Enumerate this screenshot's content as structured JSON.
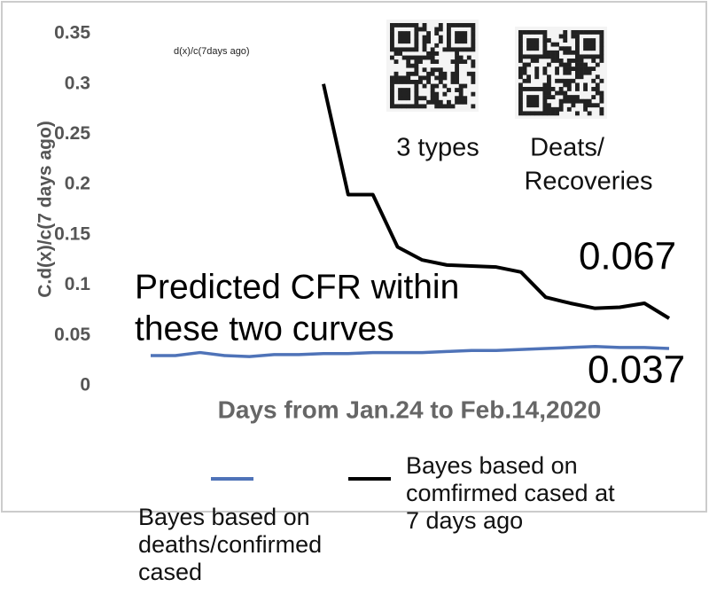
{
  "chart_data": {
    "type": "line",
    "y_label": "C.d(x)/c(7 days ago)",
    "x_label": "Days from Jan.24 to Feb.14,2020",
    "annotations": {
      "formula": "d(x)/c(7days ago)",
      "qr1": "3 types",
      "qr2": [
        "Deats/",
        "Recoveries"
      ],
      "note": [
        "Predicted CFR within",
        "these two curves"
      ],
      "upper": "0.067",
      "lower": "0.037"
    },
    "categories": [
      null,
      null,
      null,
      null,
      null,
      null,
      null,
      null,
      null,
      null,
      null,
      null,
      null,
      null,
      null,
      null,
      null,
      null,
      null,
      null,
      null,
      null
    ],
    "series": [
      {
        "name": "Bayes based on deaths/confirmed cased",
        "color": "#4f73b8",
        "values": [
          0.03,
          0.03,
          0.033,
          0.03,
          0.029,
          0.031,
          0.031,
          0.032,
          0.032,
          0.033,
          0.033,
          0.033,
          0.034,
          0.035,
          0.035,
          0.036,
          0.037,
          0.038,
          0.039,
          0.038,
          0.038,
          0.037
        ]
      },
      {
        "name": "Bayes based on comfirmed cased at 7 days ago",
        "color": "#000000",
        "values": [
          null,
          null,
          null,
          null,
          null,
          null,
          null,
          0.3,
          0.19,
          0.19,
          0.138,
          0.125,
          0.12,
          0.119,
          0.118,
          0.113,
          0.088,
          0.082,
          0.077,
          0.078,
          0.082,
          0.067
        ]
      }
    ],
    "ylim": [
      0,
      0.35
    ],
    "yticks": [
      0,
      0.05,
      0.1,
      0.15,
      0.2,
      0.25,
      0.3,
      0.35
    ],
    "grid": false
  }
}
